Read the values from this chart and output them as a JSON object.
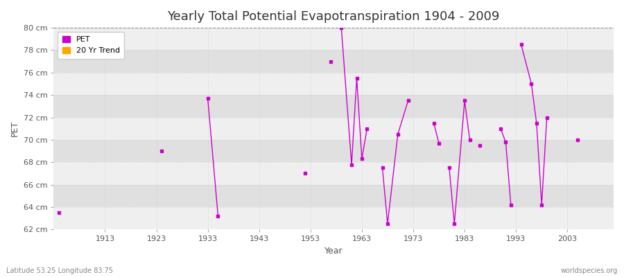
{
  "title": "Yearly Total Potential Evapotranspiration 1904 - 2009",
  "xlabel": "Year",
  "ylabel": "PET",
  "subtitle_left": "Latitude 53.25 Longitude 83.75",
  "subtitle_right": "worldspecies.org",
  "ylim": [
    62,
    80
  ],
  "yticks": [
    62,
    64,
    66,
    68,
    70,
    72,
    74,
    76,
    78,
    80
  ],
  "ytick_labels": [
    "62 cm",
    "64 cm",
    "66 cm",
    "68 cm",
    "70 cm",
    "72 cm",
    "74 cm",
    "76 cm",
    "78 cm",
    "80 cm"
  ],
  "xlim": [
    1903,
    2012
  ],
  "xticks": [
    1913,
    1923,
    1933,
    1943,
    1953,
    1963,
    1973,
    1983,
    1993,
    2003
  ],
  "pet_color": "#cc00cc",
  "trend_color": "#ffa500",
  "fig_bg": "#ffffff",
  "band_light": "#efefef",
  "band_dark": "#e0e0e0",
  "pet_segments": [
    [
      [
        1904,
        63.5
      ]
    ],
    [
      [
        1924,
        69.0
      ]
    ],
    [
      [
        1933,
        73.7
      ],
      [
        1935,
        63.2
      ]
    ],
    [
      [
        1952,
        67.0
      ]
    ],
    [
      [
        1957,
        77.0
      ]
    ],
    [
      [
        1959,
        80.0
      ],
      [
        1961,
        67.8
      ],
      [
        1962,
        75.5
      ],
      [
        1963,
        68.3
      ],
      [
        1964,
        71.0
      ]
    ],
    [
      [
        1967,
        67.5
      ],
      [
        1968,
        62.5
      ],
      [
        1970,
        70.5
      ],
      [
        1972,
        73.5
      ]
    ],
    [
      [
        1977,
        71.5
      ],
      [
        1978,
        69.7
      ]
    ],
    [
      [
        1980,
        67.5
      ],
      [
        1981,
        62.5
      ],
      [
        1983,
        73.5
      ],
      [
        1984,
        70.0
      ]
    ],
    [
      [
        1986,
        69.5
      ]
    ],
    [
      [
        1990,
        71.0
      ],
      [
        1991,
        69.8
      ],
      [
        1992,
        64.2
      ]
    ],
    [
      [
        1994,
        78.5
      ],
      [
        1996,
        75.0
      ],
      [
        1997,
        71.5
      ],
      [
        1998,
        64.2
      ],
      [
        1999,
        72.0
      ]
    ],
    [
      [
        2005,
        70.0
      ]
    ]
  ],
  "legend_entries": [
    "PET",
    "20 Yr Trend"
  ]
}
